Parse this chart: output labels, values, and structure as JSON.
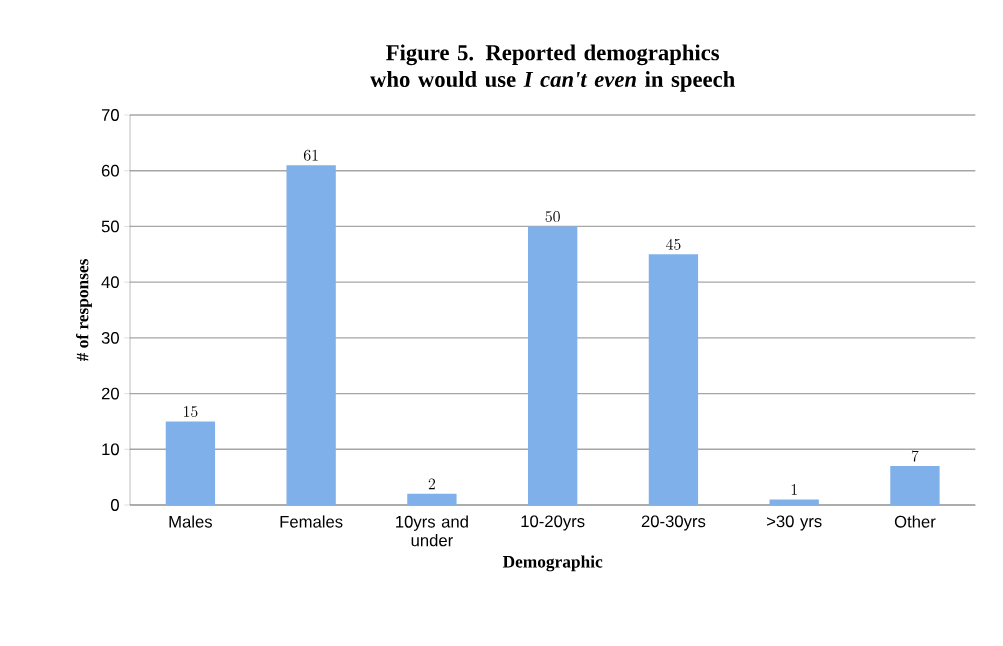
{
  "chart_data": {
    "type": "bar",
    "title": "Figure 5. Reported demographics who would use *I can't even* in speech",
    "xlabel": "Demographic",
    "ylabel": "# of responses",
    "categories": [
      "Males",
      "Females",
      "10yrs and under",
      "10-20yrs",
      "20-30yrs",
      ">30 yrs",
      "Other"
    ],
    "values": [
      15,
      61,
      2,
      50,
      45,
      1,
      7
    ],
    "color": "#7fb0ea",
    "ylim": [
      0,
      70
    ],
    "yticks": [
      0,
      10,
      20,
      30,
      40,
      50,
      60,
      70
    ],
    "grid": "y",
    "data_labels": true
  }
}
